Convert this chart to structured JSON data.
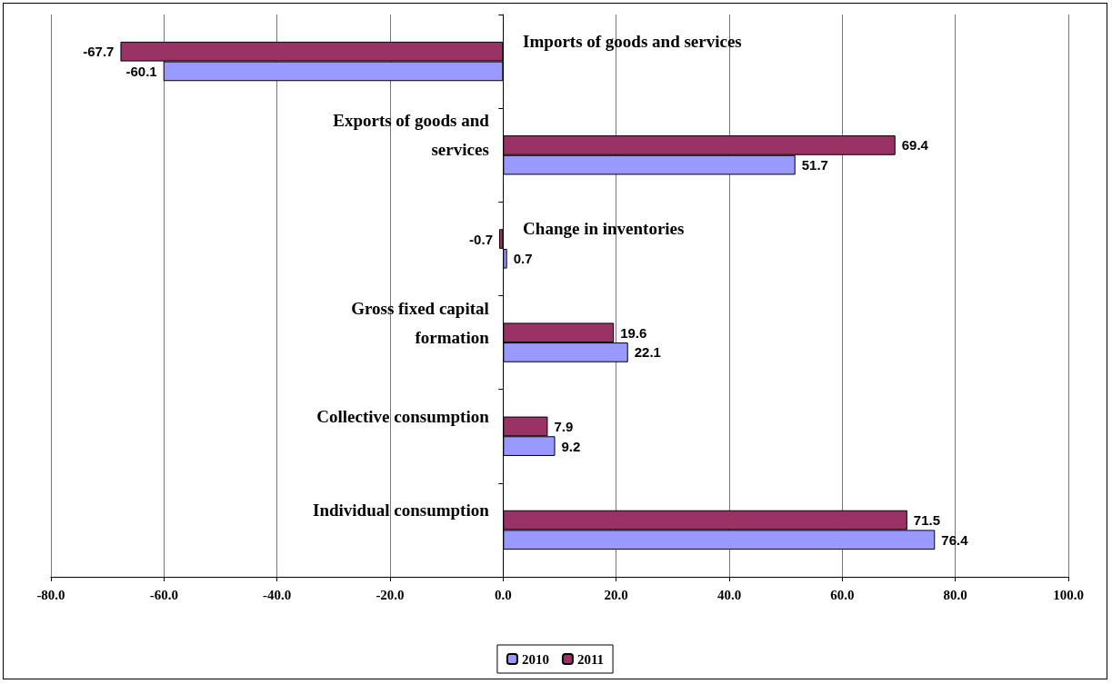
{
  "chart_data": {
    "type": "bar",
    "orientation": "horizontal",
    "categories": [
      "Imports of goods and services",
      "Exports of goods and services",
      "Change in inventories",
      "Gross fixed capital formation",
      "Collective consumption",
      "Individual consumption"
    ],
    "series": [
      {
        "name": "2010",
        "color": "#9999ff",
        "values": [
          -60.1,
          51.7,
          0.7,
          22.1,
          9.2,
          76.4
        ]
      },
      {
        "name": "2011",
        "color": "#993366",
        "values": [
          -67.7,
          69.4,
          -0.7,
          19.6,
          7.9,
          71.5
        ]
      }
    ],
    "xlim": [
      -80,
      100
    ],
    "xticks": [
      {
        "value": -80,
        "label": "-80.0"
      },
      {
        "value": -60,
        "label": "-60.0"
      },
      {
        "value": -40,
        "label": "-40.0"
      },
      {
        "value": -20,
        "label": "-20.0"
      },
      {
        "value": 0,
        "label": "0.0"
      },
      {
        "value": 20,
        "label": "20.0"
      },
      {
        "value": 40,
        "label": "40.0"
      },
      {
        "value": 60,
        "label": "60.0"
      },
      {
        "value": 80,
        "label": "80.0"
      },
      {
        "value": 100,
        "label": "100.0"
      }
    ],
    "grid": "x",
    "legend": "bottom",
    "data_labels": true
  }
}
